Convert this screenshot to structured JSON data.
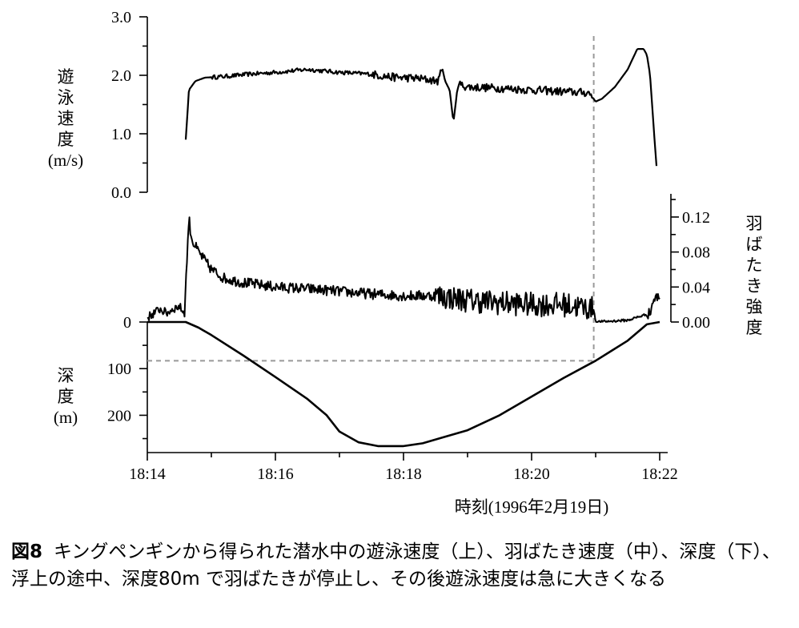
{
  "chart_data": [
    {
      "type": "line",
      "panel": "top",
      "ylabel": [
        "遊",
        "泳",
        "速",
        "度",
        "(m/s)"
      ],
      "yticks": [
        0.0,
        1.0,
        2.0,
        3.0
      ],
      "ytick_labels": [
        "0.0",
        "1.0",
        "2.0",
        "3.0"
      ],
      "ylim": [
        0,
        3.0
      ],
      "xlim": [
        0,
        8
      ],
      "series": [
        {
          "x": [
            0.6,
            0.65,
            0.75,
            0.9,
            1.2,
            1.6,
            2.0,
            2.5,
            3.0,
            3.5,
            3.8,
            4.2,
            4.55,
            4.6,
            4.65,
            4.72,
            4.78,
            4.85,
            5.0,
            5.5,
            6.0,
            6.5,
            6.9,
            7.0,
            7.1,
            7.3,
            7.5,
            7.65,
            7.75,
            7.8,
            7.85,
            7.9,
            7.95
          ],
          "y": [
            0.9,
            1.75,
            1.9,
            1.96,
            1.98,
            2.02,
            2.05,
            2.1,
            2.05,
            2.02,
            1.97,
            1.95,
            1.9,
            2.15,
            1.9,
            1.75,
            1.2,
            1.85,
            1.8,
            1.78,
            1.75,
            1.72,
            1.7,
            1.55,
            1.6,
            1.8,
            2.1,
            2.45,
            2.45,
            2.35,
            2.0,
            1.2,
            0.45
          ]
        }
      ]
    },
    {
      "type": "line",
      "panel": "middle",
      "ylabel": [
        "羽",
        "ば",
        "た",
        "き",
        "強",
        "度"
      ],
      "yticks": [
        0.0,
        0.04,
        0.08,
        0.12
      ],
      "ytick_labels": [
        "0.00",
        "0.04",
        "0.08",
        "0.12"
      ],
      "ylim": [
        0,
        0.13
      ],
      "xlim": [
        0,
        8
      ],
      "series": [
        {
          "x": [
            0.0,
            0.1,
            0.2,
            0.3,
            0.4,
            0.5,
            0.58,
            0.65,
            0.68,
            0.72,
            0.8,
            0.9,
            1.0,
            1.2,
            1.5,
            2.0,
            2.5,
            3.0,
            3.5,
            4.0,
            4.5,
            5.0,
            5.5,
            6.0,
            6.5,
            6.97,
            7.0,
            7.5,
            7.85,
            7.9,
            8.0
          ],
          "y": [
            0.005,
            0.01,
            0.015,
            0.01,
            0.015,
            0.018,
            0.01,
            0.12,
            0.1,
            0.09,
            0.08,
            0.07,
            0.06,
            0.05,
            0.045,
            0.04,
            0.038,
            0.035,
            0.032,
            0.03,
            0.03,
            0.025,
            0.022,
            0.02,
            0.02,
            0.015,
            0.0,
            0.002,
            0.01,
            0.025,
            0.03
          ]
        }
      ]
    },
    {
      "type": "line",
      "panel": "bottom",
      "ylabel": [
        "深",
        "度",
        "(m)"
      ],
      "yticks": [
        0,
        100,
        200
      ],
      "ytick_labels": [
        "0",
        "100",
        "200"
      ],
      "ylim": [
        280,
        0
      ],
      "xlim": [
        0,
        8
      ],
      "xticks": [
        0,
        2,
        4,
        6,
        8
      ],
      "xtick_labels": [
        "18:14",
        "18:16",
        "18:18",
        "18:20",
        "18:22"
      ],
      "xlabel": "時刻(1996年2月19日)",
      "series": [
        {
          "x": [
            0.0,
            0.6,
            0.8,
            1.0,
            1.5,
            2.0,
            2.5,
            2.8,
            3.0,
            3.3,
            3.6,
            4.0,
            4.3,
            4.6,
            5.0,
            5.5,
            6.0,
            6.5,
            7.0,
            7.5,
            7.8,
            8.0
          ],
          "y": [
            0,
            0,
            12,
            28,
            72,
            118,
            165,
            200,
            235,
            258,
            266,
            266,
            260,
            248,
            232,
            200,
            160,
            120,
            83,
            40,
            5,
            0
          ]
        }
      ]
    }
  ],
  "annotations": {
    "vertical_dashed_x": 6.97,
    "horizontal_dashed_depth": 83,
    "dash_color": "#999999",
    "line_color": "#000000"
  },
  "caption": {
    "label": "図8",
    "text": "キングペンギンから得られた潜水中の遊泳速度（上）、羽ばたき速度（中）、深度（下）、浮上の途中、深度80m で羽ばたきが停止し、その後遊泳速度は急に大きくなる"
  }
}
